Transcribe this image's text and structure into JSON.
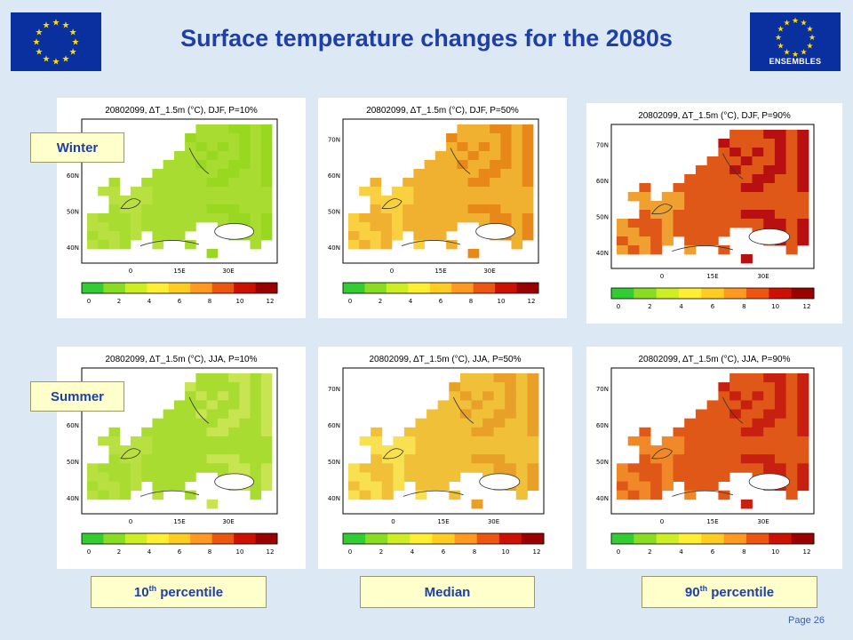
{
  "title": "Surface temperature changes for the 2080s",
  "logo_right_text": "ENSEMBLES",
  "page_number": "Page 26",
  "row_labels": {
    "winter": "Winter",
    "summer": "Summer"
  },
  "column_labels": {
    "p10": {
      "main": "10",
      "sup": "th",
      "rest": " percentile"
    },
    "median": "Median",
    "p90": {
      "main": "90",
      "sup": "th",
      "rest": " percentile"
    }
  },
  "maps": [
    {
      "heading": "20802099, ΔT_1.5m (°C), DJF, P=10%",
      "season": "DJF",
      "percentile": "P=10%",
      "colors": [
        "#b8e040",
        "#a8dc30",
        "#98d820"
      ]
    },
    {
      "heading": "20802099, ΔT_1.5m (°C), DJF, P=50%",
      "season": "DJF",
      "percentile": "P=50%",
      "colors": [
        "#f8d040",
        "#f0b030",
        "#e88818"
      ]
    },
    {
      "heading": "20802099, ΔT_1.5m (°C), DJF, P=90%",
      "season": "DJF",
      "percentile": "P=90%",
      "colors": [
        "#f0a030",
        "#e05818",
        "#b81010"
      ]
    },
    {
      "heading": "20802099, ΔT_1.5m (°C), JJA, P=10%",
      "season": "JJA",
      "percentile": "P=10%",
      "colors": [
        "#b8e040",
        "#a8dc30",
        "#c8e450"
      ]
    },
    {
      "heading": "20802099, ΔT_1.5m (°C), JJA, P=50%",
      "season": "JJA",
      "percentile": "P=50%",
      "colors": [
        "#f8e050",
        "#f0c038",
        "#e8a028"
      ]
    },
    {
      "heading": "20802099, ΔT_1.5m (°C), JJA, P=90%",
      "season": "JJA",
      "percentile": "P=90%",
      "colors": [
        "#f08828",
        "#e05818",
        "#c82010"
      ]
    }
  ],
  "lat_ticks": [
    "70N",
    "60N",
    "50N",
    "40N"
  ],
  "lon_ticks": [
    "0",
    "15E",
    "30E"
  ],
  "colorbar_ticks": [
    "0",
    "2",
    "4",
    "6",
    "8",
    "10",
    "12"
  ],
  "colorbar_colors": [
    "#33cc33",
    "#88dd22",
    "#ccee22",
    "#ffee33",
    "#ffcc22",
    "#ff9922",
    "#ee5511",
    "#cc1100",
    "#990000"
  ],
  "colors": {
    "background": "#dce9f5",
    "title": "#1f3fa8",
    "label_fill": "#ffffcc",
    "flag_blue": "#0a2f9e",
    "flag_star": "#ffdd00"
  }
}
